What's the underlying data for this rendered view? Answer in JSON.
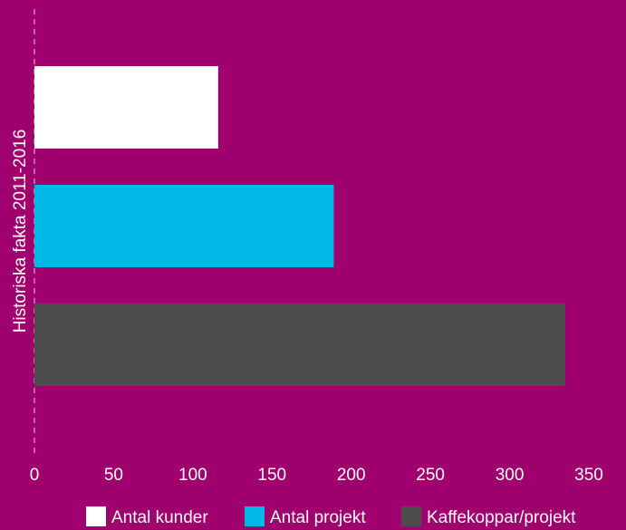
{
  "chart_data": {
    "type": "bar",
    "orientation": "horizontal",
    "ylabel": "Historiska fakta 2011-2016",
    "xlim": [
      0,
      350
    ],
    "x_ticks": [
      0,
      50,
      100,
      150,
      200,
      250,
      300,
      350
    ],
    "series": [
      {
        "name": "Antal kunder",
        "value": 116,
        "color": "#ffffff"
      },
      {
        "name": "Antal projekt",
        "value": 189,
        "color": "#00b8e6"
      },
      {
        "name": "Kaffekoppar/projekt",
        "value": 335,
        "color": "#4d4d4d"
      }
    ],
    "legend_position": "bottom",
    "grid": false
  }
}
